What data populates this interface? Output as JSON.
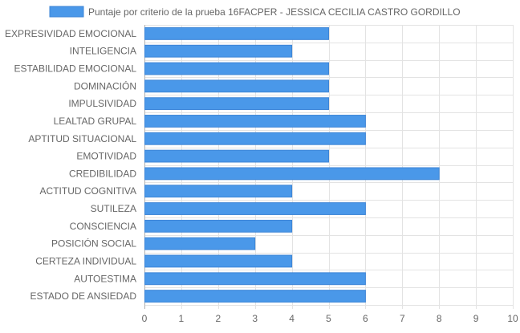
{
  "chart_data": {
    "type": "bar",
    "orientation": "horizontal",
    "legend": {
      "label": "Puntaje por criterio de la prueba 16FACPER - JESSICA CECILIA CASTRO GORDILLO",
      "position": "top-center"
    },
    "categories": [
      "EXPRESIVIDAD EMOCIONAL",
      "INTELIGENCIA",
      "ESTABILIDAD EMOCIONAL",
      "DOMINACIÓN",
      "IMPULSIVIDAD",
      "LEALTAD GRUPAL",
      "APTITUD SITUACIONAL",
      "EMOTIVIDAD",
      "CREDIBILIDAD",
      "ACTITUD COGNITIVA",
      "SUTILEZA",
      "CONSCIENCIA",
      "POSICIÓN SOCIAL",
      "CERTEZA INDIVIDUAL",
      "AUTOESTIMA",
      "ESTADO DE ANSIEDAD"
    ],
    "series": [
      {
        "name": "Puntaje por criterio de la prueba 16FACPER - JESSICA CECILIA CASTRO GORDILLO",
        "values": [
          5,
          4,
          5,
          5,
          5,
          6,
          6,
          5,
          8,
          4,
          6,
          4,
          3,
          4,
          6,
          6
        ]
      }
    ],
    "xlim": [
      0,
      10
    ],
    "xticks": [
      "0",
      "1",
      "2",
      "3",
      "4",
      "5",
      "6",
      "7",
      "8",
      "9",
      "10"
    ],
    "grid": true,
    "colors": {
      "bar_fill": "#4a98e9",
      "bar_stroke": "#3d85d6",
      "grid": "#e3e3e3",
      "axis": "#b0b0b0",
      "text": "#666666"
    }
  }
}
